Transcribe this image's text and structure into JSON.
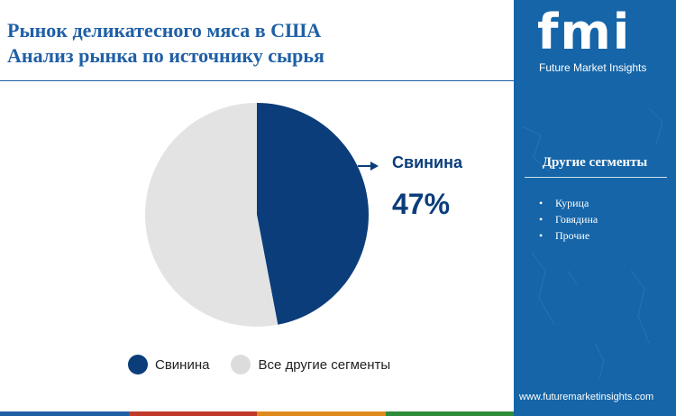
{
  "title": {
    "line1": "Рынок деликатесного мяса в США",
    "line2": "Анализ рынка по источнику сырья"
  },
  "chart_data": {
    "type": "pie",
    "slices": [
      {
        "label": "Свинина",
        "value": 47,
        "color": "#0b3d7a"
      },
      {
        "label": "Все другие сегменты",
        "value": 53,
        "color": "#e3e3e3"
      }
    ],
    "callout": {
      "label": "Свинина",
      "value": "47%"
    }
  },
  "legend": [
    {
      "label": "Свинина",
      "color": "#0b3d7a"
    },
    {
      "label": "Все другие сегменты",
      "color": "#dcdcdc"
    }
  ],
  "sidebar": {
    "logo_letters": "fmi",
    "logo_subtitle": "Future Market Insights",
    "segments_heading": "Другие сегменты",
    "segments": [
      "Курица",
      "Говядина",
      "Прочие"
    ],
    "website": "www.futuremarketinsights.com"
  },
  "colors": {
    "brand_blue": "#1565a8",
    "title_blue": "#1f5fa6",
    "pork_navy": "#0b3d7a",
    "bottom_bar": [
      "#1f5fa6",
      "#c0392b",
      "#e08a1e",
      "#2e8b3a"
    ]
  }
}
